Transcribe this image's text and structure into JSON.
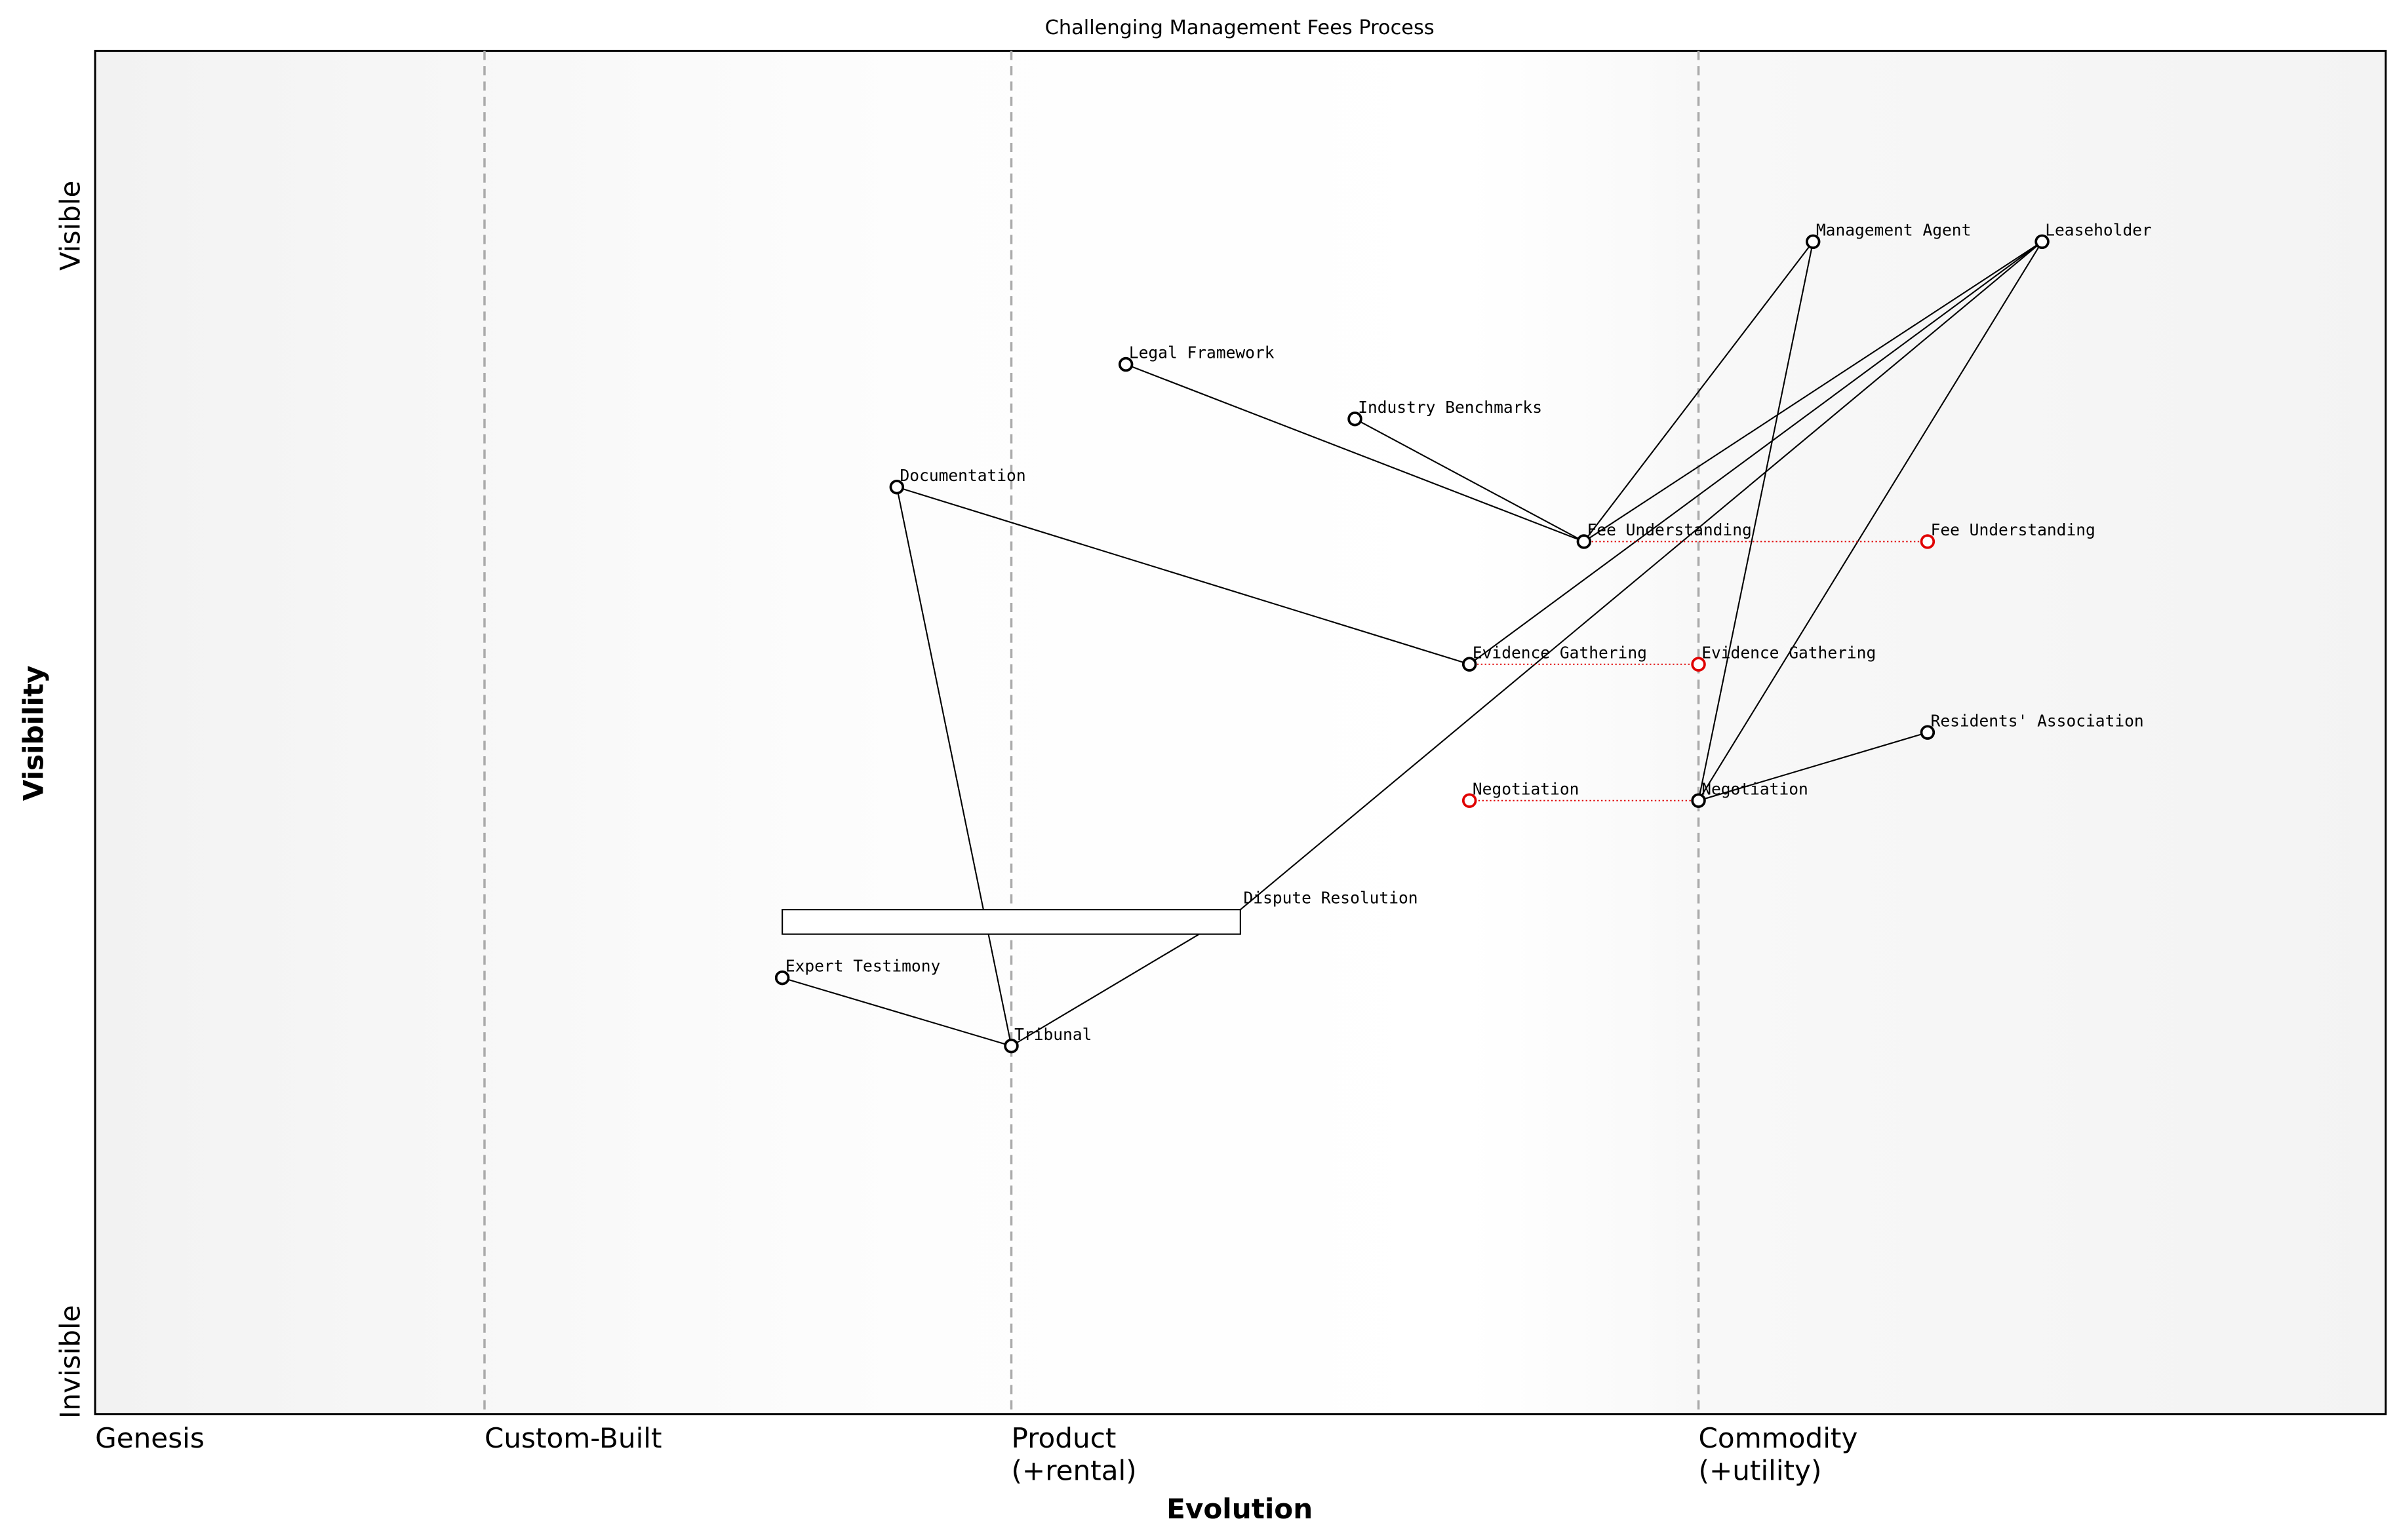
{
  "chart_data": {
    "type": "wardley",
    "title": "Challenging Management Fees Process",
    "xlabel": "Evolution",
    "ylabel": "Visibility",
    "y_top_label": "Visible",
    "y_bottom_label": "Invisible",
    "xlim": [
      0,
      1
    ],
    "ylim": [
      0,
      1
    ],
    "stages": [
      {
        "value": 0,
        "label": [
          "Genesis"
        ]
      },
      {
        "value": 0.17,
        "label": [
          "Custom-Built"
        ]
      },
      {
        "value": 0.4,
        "label": [
          "Product",
          "(+rental)"
        ]
      },
      {
        "value": 0.7,
        "label": [
          "Commodity",
          "(+utility)"
        ]
      }
    ],
    "nodes": [
      {
        "name": "Management Agent",
        "x": 0.75,
        "y": 0.86
      },
      {
        "name": "Leaseholder",
        "x": 0.85,
        "y": 0.86
      },
      {
        "name": "Legal Framework",
        "x": 0.45,
        "y": 0.77
      },
      {
        "name": "Industry Benchmarks",
        "x": 0.55,
        "y": 0.73
      },
      {
        "name": "Documentation",
        "x": 0.35,
        "y": 0.68
      },
      {
        "name": "Fee Understanding",
        "x": 0.65,
        "y": 0.64
      },
      {
        "name": "Evidence Gathering",
        "x": 0.6,
        "y": 0.55
      },
      {
        "name": "Residents' Association",
        "x": 0.8,
        "y": 0.5
      },
      {
        "name": "Negotiation",
        "x": 0.7,
        "y": 0.45
      },
      {
        "name": "Expert Testimony",
        "x": 0.3,
        "y": 0.32
      },
      {
        "name": "Tribunal",
        "x": 0.4,
        "y": 0.27
      }
    ],
    "pipelines": [
      {
        "name": "Dispute Resolution",
        "x_start": 0.3,
        "x_end": 0.5,
        "y": 0.37
      }
    ],
    "edges": [
      [
        "Management Agent",
        "Fee Understanding"
      ],
      [
        "Management Agent",
        "Negotiation"
      ],
      [
        "Leaseholder",
        "Fee Understanding"
      ],
      [
        "Leaseholder",
        "Evidence Gathering"
      ],
      [
        "Leaseholder",
        "Dispute Resolution"
      ],
      [
        "Leaseholder",
        "Negotiation"
      ],
      [
        "Legal Framework",
        "Fee Understanding"
      ],
      [
        "Industry Benchmarks",
        "Fee Understanding"
      ],
      [
        "Documentation",
        "Evidence Gathering"
      ],
      [
        "Documentation",
        "Tribunal"
      ],
      [
        "Expert Testimony",
        "Tribunal"
      ],
      [
        "Tribunal",
        "Dispute Resolution"
      ],
      [
        "Negotiation",
        "Residents' Association"
      ]
    ],
    "evolutions": [
      {
        "name": "Fee Understanding",
        "from": 0.65,
        "to": 0.8,
        "y": 0.64
      },
      {
        "name": "Evidence Gathering",
        "from": 0.6,
        "to": 0.7,
        "y": 0.55
      },
      {
        "name": "Negotiation",
        "from": 0.7,
        "to": 0.6,
        "y": 0.45
      }
    ],
    "evolution_color": "#e00000"
  }
}
